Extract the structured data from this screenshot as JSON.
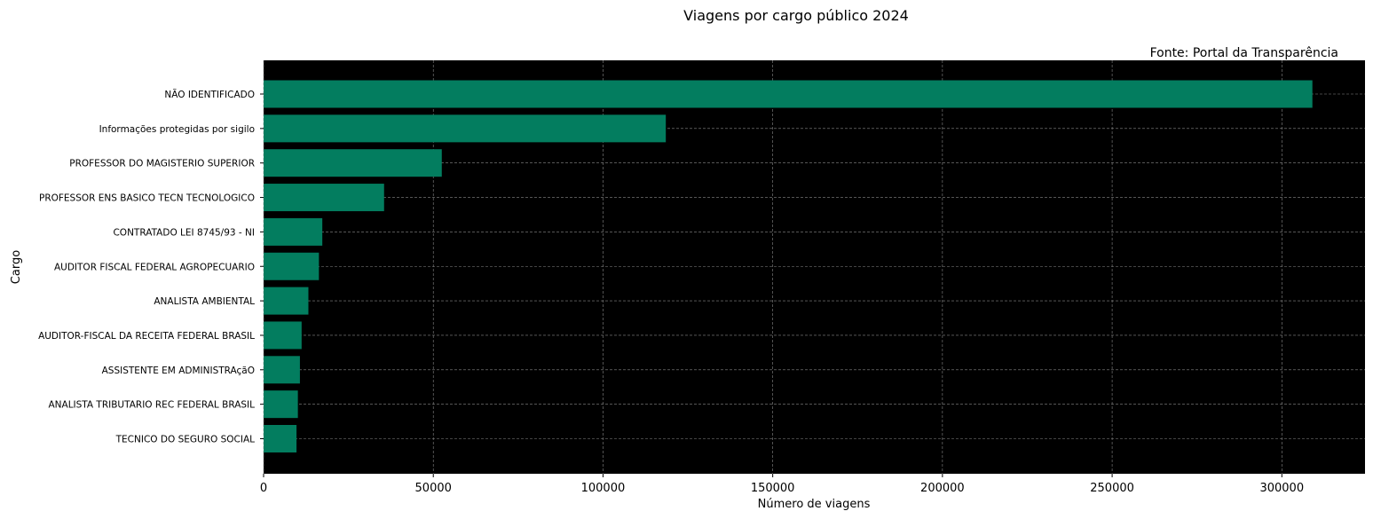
{
  "chart_data": {
    "type": "bar",
    "orientation": "horizontal",
    "title": "Viagens por cargo público 2024",
    "annotation": "Fonte: Portal da Transparência",
    "xlabel": "Número de viagens",
    "ylabel": "Cargo",
    "xlim": [
      0,
      324500
    ],
    "xticks": [
      0,
      50000,
      100000,
      150000,
      200000,
      250000,
      300000
    ],
    "grid": true,
    "background_color": "#000000",
    "bar_color": "#037d5f",
    "categories": [
      "NÃO IDENTIFICADO",
      "Informações protegidas por sigilo",
      "PROFESSOR DO MAGISTERIO SUPERIOR",
      "PROFESSOR ENS BASICO TECN TECNOLOGICO",
      "CONTRATADO LEI 8745/93 - NI",
      "AUDITOR FISCAL FEDERAL AGROPECUARIO",
      "ANALISTA AMBIENTAL",
      "AUDITOR-FISCAL DA RECEITA FEDERAL BRASIL",
      "ASSISTENTE EM ADMINISTRAçãO",
      "ANALISTA TRIBUTARIO REC FEDERAL BRASIL",
      "TECNICO DO SEGURO SOCIAL"
    ],
    "values": [
      309000,
      118500,
      52500,
      35500,
      17300,
      16300,
      13200,
      11200,
      10700,
      10100,
      9700
    ]
  }
}
